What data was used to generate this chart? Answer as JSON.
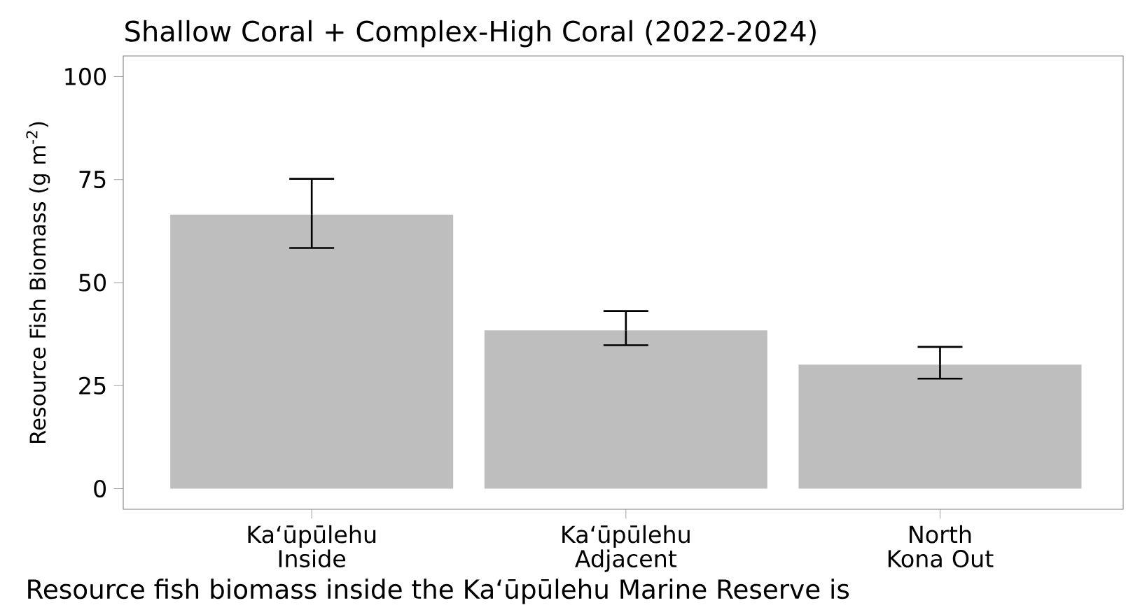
{
  "chart_data": {
    "type": "bar",
    "title": "Shallow Coral + Complex-High Coral (2022-2024)",
    "ylabel": "Resource Fish Biomass (g m$^{-2}$)",
    "categories": [
      "Kaʻūpūlehu Inside",
      "Kaʻūpūlehu Adjacent",
      "North Kona Out"
    ],
    "values": [
      66.5,
      38.4,
      30.1
    ],
    "errors": [
      [
        58.4,
        75.2
      ],
      [
        34.8,
        43.1
      ],
      [
        26.7,
        34.4
      ]
    ],
    "color": "#bebebe",
    "ylim": [
      -5,
      105
    ],
    "yticks": [
      0,
      25,
      50,
      75,
      100
    ],
    "grid": false,
    "annotations": [
      "Resource fish biomass inside the Kaʻūpūlehu Marine Reserve is"
    ]
  }
}
